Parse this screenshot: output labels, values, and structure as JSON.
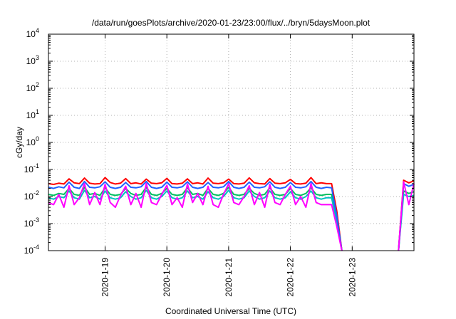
{
  "chart_data": {
    "type": "line",
    "title": "/data/run/goesPlots/archive/2020-01-23/23:00/flux/../bryn/5daysMoon.plot",
    "xlabel": "Coordinated Universal Time (UTC)",
    "ylabel": "cGy/day",
    "yscale": "log",
    "ylim": [
      0.0001,
      10000
    ],
    "xlim": [
      "2020-01-18 02:00",
      "2020-01-24 00:00"
    ],
    "grid": true,
    "legend": "none",
    "x_ticks": [
      "2020-1-19",
      "2020-1-20",
      "2020-1-21",
      "2020-1-22",
      "2020-1-23"
    ],
    "y_ticks": [
      {
        "mantissa": "10",
        "exp": "-4"
      },
      {
        "mantissa": "10",
        "exp": "-3"
      },
      {
        "mantissa": "10",
        "exp": "-2"
      },
      {
        "mantissa": "10",
        "exp": "-1"
      },
      {
        "mantissa": "10",
        "exp": "0"
      },
      {
        "mantissa": "10",
        "exp": "1"
      },
      {
        "mantissa": "10",
        "exp": "2"
      },
      {
        "mantissa": "10",
        "exp": "3"
      },
      {
        "mantissa": "10",
        "exp": "4"
      }
    ],
    "x": [
      "2020-01-18 02:00",
      "2020-01-18 04:00",
      "2020-01-18 06:00",
      "2020-01-18 08:00",
      "2020-01-18 10:00",
      "2020-01-18 12:00",
      "2020-01-18 14:00",
      "2020-01-18 16:00",
      "2020-01-18 18:00",
      "2020-01-18 20:00",
      "2020-01-18 22:00",
      "2020-01-19 00:00",
      "2020-01-19 02:00",
      "2020-01-19 04:00",
      "2020-01-19 06:00",
      "2020-01-19 08:00",
      "2020-01-19 10:00",
      "2020-01-19 12:00",
      "2020-01-19 14:00",
      "2020-01-19 16:00",
      "2020-01-19 18:00",
      "2020-01-19 20:00",
      "2020-01-19 22:00",
      "2020-01-20 00:00",
      "2020-01-20 02:00",
      "2020-01-20 04:00",
      "2020-01-20 06:00",
      "2020-01-20 08:00",
      "2020-01-20 10:00",
      "2020-01-20 12:00",
      "2020-01-20 14:00",
      "2020-01-20 16:00",
      "2020-01-20 18:00",
      "2020-01-20 20:00",
      "2020-01-20 22:00",
      "2020-01-21 00:00",
      "2020-01-21 02:00",
      "2020-01-21 04:00",
      "2020-01-21 06:00",
      "2020-01-21 08:00",
      "2020-01-21 10:00",
      "2020-01-21 12:00",
      "2020-01-21 14:00",
      "2020-01-21 16:00",
      "2020-01-21 18:00",
      "2020-01-21 20:00",
      "2020-01-21 22:00",
      "2020-01-22 00:00",
      "2020-01-22 02:00",
      "2020-01-22 04:00",
      "2020-01-22 06:00",
      "2020-01-22 08:00",
      "2020-01-22 10:00",
      "2020-01-22 12:00",
      "2020-01-22 14:00",
      "2020-01-22 16:00",
      "2020-01-22 18:00",
      "2020-01-22 20:00",
      "2020-01-23 18:00",
      "2020-01-23 20:00",
      "2020-01-23 22:00",
      "2020-01-24 00:00"
    ],
    "series": [
      {
        "color": "#ff0000",
        "values": [
          0.03,
          0.028,
          0.031,
          0.029,
          0.045,
          0.032,
          0.03,
          0.048,
          0.031,
          0.029,
          0.03,
          0.05,
          0.033,
          0.029,
          0.031,
          0.046,
          0.03,
          0.032,
          0.029,
          0.044,
          0.031,
          0.03,
          0.032,
          0.047,
          0.03,
          0.029,
          0.031,
          0.045,
          0.03,
          0.032,
          0.029,
          0.048,
          0.031,
          0.03,
          0.032,
          0.044,
          0.03,
          0.029,
          0.031,
          0.049,
          0.032,
          0.03,
          0.029,
          0.046,
          0.031,
          0.03,
          0.032,
          0.043,
          0.03,
          0.029,
          0.031,
          0.05,
          0.03,
          0.032,
          0.03,
          0.03,
          0.003,
          0.0001,
          0.0001,
          0.04,
          0.032,
          0.038
        ]
      },
      {
        "color": "#00c060",
        "values": [
          0.012,
          0.011,
          0.013,
          0.012,
          0.02,
          0.012,
          0.011,
          0.022,
          0.012,
          0.013,
          0.011,
          0.021,
          0.012,
          0.011,
          0.012,
          0.02,
          0.013,
          0.011,
          0.012,
          0.022,
          0.012,
          0.011,
          0.013,
          0.02,
          0.012,
          0.011,
          0.012,
          0.021,
          0.012,
          0.013,
          0.011,
          0.02,
          0.012,
          0.011,
          0.013,
          0.022,
          0.012,
          0.011,
          0.012,
          0.02,
          0.013,
          0.011,
          0.012,
          0.021,
          0.012,
          0.011,
          0.012,
          0.02,
          0.012,
          0.011,
          0.013,
          0.021,
          0.012,
          0.011,
          0.012,
          0.012,
          0.0015,
          0.0001,
          0.0001,
          0.016,
          0.013,
          0.015
        ]
      },
      {
        "color": "#00c0c0",
        "values": [
          0.009,
          0.008,
          0.01,
          0.009,
          0.016,
          0.009,
          0.008,
          0.017,
          0.009,
          0.01,
          0.008,
          0.016,
          0.009,
          0.008,
          0.009,
          0.015,
          0.01,
          0.008,
          0.009,
          0.017,
          0.009,
          0.008,
          0.01,
          0.016,
          0.009,
          0.008,
          0.009,
          0.016,
          0.009,
          0.01,
          0.008,
          0.015,
          0.009,
          0.008,
          0.01,
          0.017,
          0.009,
          0.008,
          0.009,
          0.016,
          0.01,
          0.008,
          0.009,
          0.016,
          0.009,
          0.008,
          0.009,
          0.015,
          0.009,
          0.008,
          0.01,
          0.016,
          0.009,
          0.008,
          0.009,
          0.009,
          0.0012,
          0.0001,
          0.0001,
          0.012,
          0.01,
          0.011
        ]
      },
      {
        "color": "#2060ff",
        "values": [
          0.022,
          0.02,
          0.023,
          0.021,
          0.034,
          0.022,
          0.02,
          0.036,
          0.022,
          0.021,
          0.023,
          0.035,
          0.022,
          0.02,
          0.022,
          0.033,
          0.022,
          0.021,
          0.023,
          0.036,
          0.022,
          0.02,
          0.022,
          0.034,
          0.022,
          0.021,
          0.023,
          0.035,
          0.022,
          0.02,
          0.022,
          0.033,
          0.022,
          0.021,
          0.023,
          0.036,
          0.022,
          0.02,
          0.022,
          0.034,
          0.022,
          0.021,
          0.023,
          0.035,
          0.022,
          0.02,
          0.022,
          0.033,
          0.022,
          0.021,
          0.023,
          0.036,
          0.022,
          0.02,
          0.022,
          0.021,
          0.002,
          0.0001,
          0.0001,
          0.03,
          0.024,
          0.028
        ]
      },
      {
        "color": "#ff00ff",
        "values": [
          0.006,
          0.005,
          0.012,
          0.004,
          0.025,
          0.005,
          0.009,
          0.03,
          0.005,
          0.014,
          0.005,
          0.028,
          0.006,
          0.004,
          0.011,
          0.024,
          0.005,
          0.013,
          0.004,
          0.03,
          0.006,
          0.005,
          0.012,
          0.026,
          0.005,
          0.009,
          0.004,
          0.029,
          0.006,
          0.013,
          0.005,
          0.024,
          0.005,
          0.004,
          0.012,
          0.03,
          0.006,
          0.005,
          0.01,
          0.025,
          0.005,
          0.014,
          0.004,
          0.028,
          0.006,
          0.005,
          0.012,
          0.024,
          0.005,
          0.01,
          0.004,
          0.03,
          0.006,
          0.005,
          0.005,
          0.005,
          0.0008,
          0.0001,
          0.0001,
          0.035,
          0.005,
          0.03
        ]
      }
    ]
  }
}
